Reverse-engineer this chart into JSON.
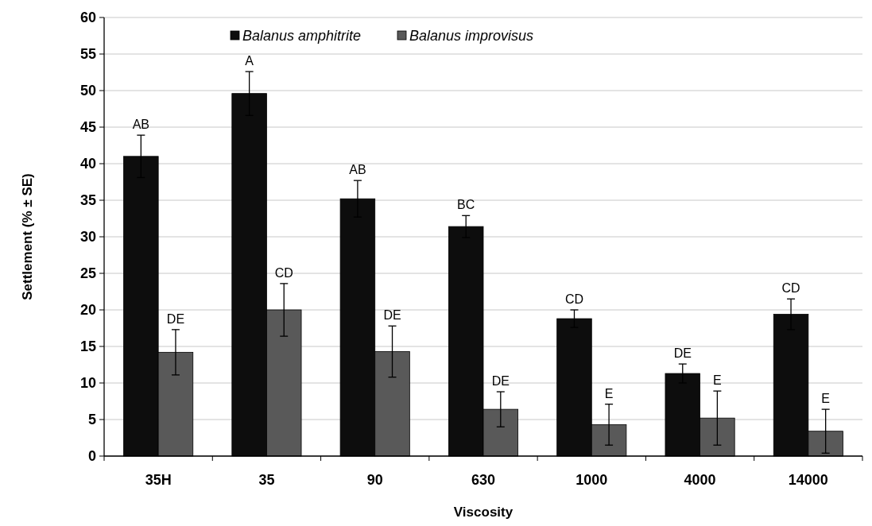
{
  "chart_data": {
    "type": "bar",
    "xlabel": "Viscosity",
    "ylabel": "Settlement (% ± SE)",
    "categories": [
      "35H",
      "35",
      "90",
      "630",
      "1000",
      "4000",
      "14000"
    ],
    "series": [
      {
        "name": "Balanus amphitrite",
        "color": "#0d0d0d",
        "values": [
          41.0,
          49.6,
          35.2,
          31.4,
          18.8,
          11.3,
          19.4
        ],
        "errors": [
          2.9,
          3.0,
          2.5,
          1.5,
          1.2,
          1.3,
          2.1
        ],
        "value_labels": [
          "AB",
          "A",
          "AB",
          "BC",
          "CD",
          "DE",
          "CD"
        ]
      },
      {
        "name": "Balanus improvisus",
        "color": "#595959",
        "values": [
          14.2,
          20.0,
          14.3,
          6.4,
          4.3,
          5.2,
          3.4
        ],
        "errors": [
          3.1,
          3.6,
          3.5,
          2.4,
          2.8,
          3.7,
          3.0
        ],
        "value_labels": [
          "DE",
          "CD",
          "DE",
          "DE",
          "E",
          "E",
          "E"
        ]
      }
    ],
    "ylim": [
      0,
      60
    ],
    "yticks": [
      0,
      5,
      10,
      15,
      20,
      25,
      30,
      35,
      40,
      45,
      50,
      55,
      60
    ],
    "grid": "y",
    "legend": "top"
  }
}
